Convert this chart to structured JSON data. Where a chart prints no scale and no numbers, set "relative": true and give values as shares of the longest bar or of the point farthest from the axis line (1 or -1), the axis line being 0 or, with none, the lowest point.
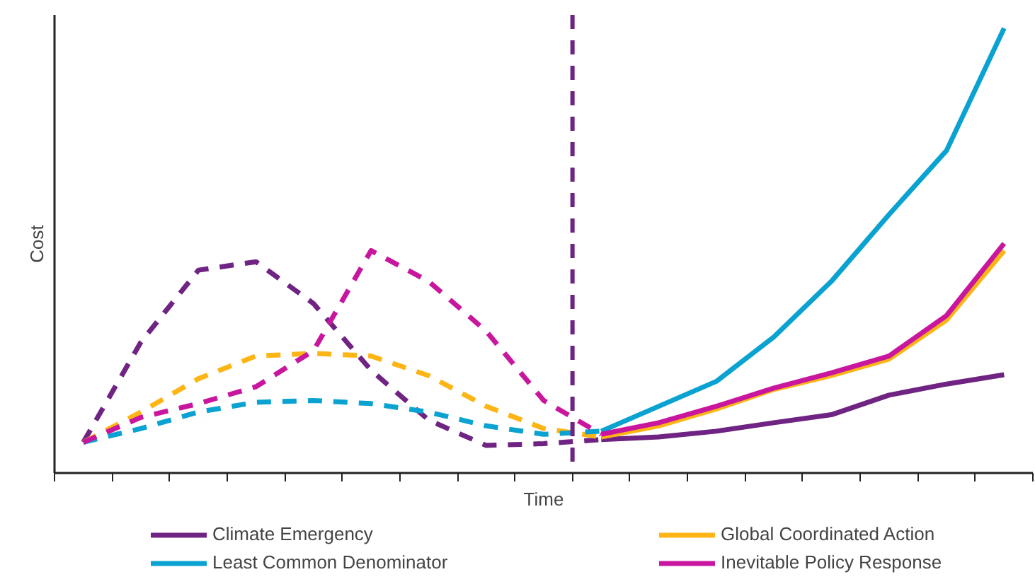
{
  "chart_data": {
    "type": "line",
    "xlabel": "Time",
    "ylabel": "Cost",
    "relative": true,
    "legend": "bottom",
    "categories": [
      null,
      null,
      null,
      null,
      null,
      null,
      null,
      null,
      null,
      null,
      null,
      null,
      null,
      null,
      null,
      null,
      null
    ],
    "series": [
      {
        "name": "Climate Emergency",
        "color": "#6f2382",
        "line_style": "solid",
        "values": [
          null,
          null,
          null,
          null,
          null,
          null,
          null,
          null,
          null,
          0.075,
          0.081,
          0.094,
          0.113,
          0.131,
          0.175,
          0.2,
          0.221
        ]
      },
      {
        "name": "Global Coordinated Action",
        "color": "#fdb515",
        "line_style": "solid",
        "values": [
          null,
          null,
          null,
          null,
          null,
          null,
          null,
          null,
          null,
          0.081,
          0.106,
          0.144,
          0.188,
          0.219,
          0.256,
          0.344,
          0.5
        ]
      },
      {
        "name": "Least Common Denominator",
        "color": "#0aa3d1",
        "line_style": "solid",
        "values": [
          null,
          null,
          null,
          null,
          null,
          null,
          null,
          null,
          null,
          0.094,
          0.15,
          0.206,
          0.306,
          0.431,
          0.581,
          0.725,
          1.0
        ]
      },
      {
        "name": "Inevitable Policy Response",
        "color": "#c8179e",
        "line_style": "solid",
        "values": [
          null,
          null,
          null,
          null,
          null,
          null,
          null,
          null,
          null,
          0.087,
          0.113,
          0.15,
          0.191,
          0.225,
          0.263,
          0.354,
          0.516
        ]
      },
      {
        "color": "#6f2382",
        "line_style": "dashed",
        "values": [
          0.069,
          0.294,
          0.456,
          0.475,
          0.381,
          0.231,
          0.119,
          0.062,
          0.066,
          0.075,
          null,
          null,
          null,
          null,
          null,
          null,
          null
        ]
      },
      {
        "color": "#fdb515",
        "line_style": "dashed",
        "values": [
          0.069,
          0.137,
          0.212,
          0.263,
          0.269,
          0.263,
          0.219,
          0.15,
          0.1,
          0.081,
          null,
          null,
          null,
          null,
          null,
          null,
          null
        ]
      },
      {
        "color": "#0aa3d1",
        "line_style": "dashed",
        "values": [
          0.069,
          0.1,
          0.137,
          0.159,
          0.163,
          0.156,
          0.137,
          0.106,
          0.087,
          0.094,
          null,
          null,
          null,
          null,
          null,
          null,
          null
        ]
      },
      {
        "color": "#c8179e",
        "line_style": "dashed",
        "values": [
          0.069,
          0.125,
          0.156,
          0.194,
          0.275,
          0.5,
          0.431,
          0.319,
          0.163,
          0.087,
          null,
          null,
          null,
          null,
          null,
          null,
          null
        ]
      }
    ]
  }
}
